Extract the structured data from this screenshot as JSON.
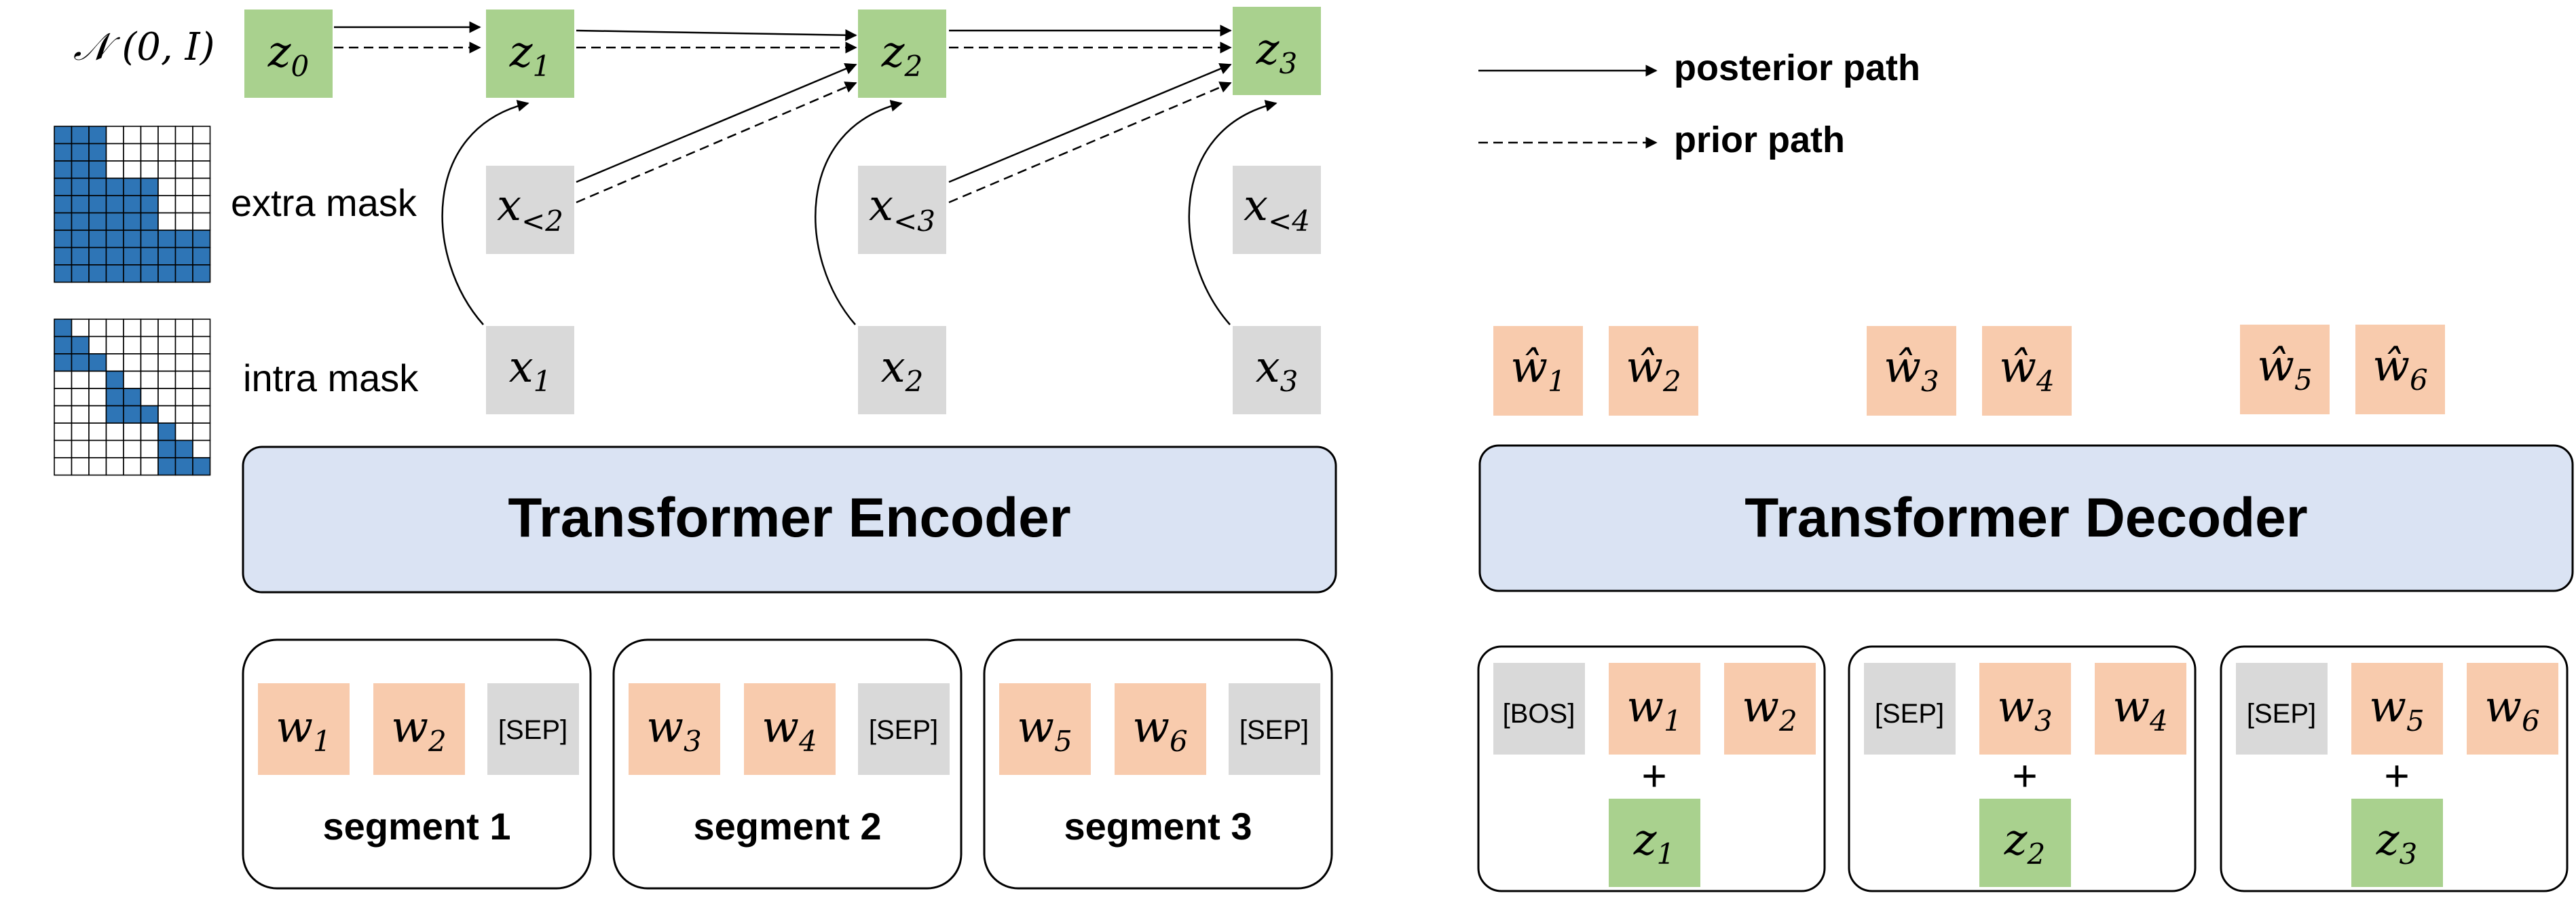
{
  "colors": {
    "latent": "#a9d18e",
    "input": "#d9d9d9",
    "token": "#f8cbad",
    "block": "#dae3f3",
    "mask_fill": "#2e75b6",
    "outline": "#000000"
  },
  "prior": {
    "distribution": "𝒩 (0, I)"
  },
  "latents": [
    {
      "name": "z",
      "sub": "0"
    },
    {
      "name": "z",
      "sub": "1"
    },
    {
      "name": "z",
      "sub": "2"
    },
    {
      "name": "z",
      "sub": "3"
    }
  ],
  "extra_inputs": [
    {
      "name": "x",
      "sub": "<2"
    },
    {
      "name": "x",
      "sub": "<3"
    },
    {
      "name": "x",
      "sub": "<4"
    }
  ],
  "intra_inputs": [
    {
      "name": "x",
      "sub": "1"
    },
    {
      "name": "x",
      "sub": "2"
    },
    {
      "name": "x",
      "sub": "3"
    }
  ],
  "mask_labels": {
    "extra": "extra mask",
    "intra": "intra mask"
  },
  "legend": {
    "posterior": "posterior path",
    "prior": "prior path"
  },
  "encoder": {
    "title": "Transformer Encoder",
    "segments": [
      {
        "label": "segment 1",
        "tokens": [
          {
            "name": "w",
            "sub": "1"
          },
          {
            "name": "w",
            "sub": "2"
          }
        ],
        "sep": "[SEP]"
      },
      {
        "label": "segment 2",
        "tokens": [
          {
            "name": "w",
            "sub": "3"
          },
          {
            "name": "w",
            "sub": "4"
          }
        ],
        "sep": "[SEP]"
      },
      {
        "label": "segment 3",
        "tokens": [
          {
            "name": "w",
            "sub": "5"
          },
          {
            "name": "w",
            "sub": "6"
          }
        ],
        "sep": "[SEP]"
      }
    ]
  },
  "decoder": {
    "title": "Transformer Decoder",
    "outputs": [
      {
        "name": "ŵ",
        "sub": "1"
      },
      {
        "name": "ŵ",
        "sub": "2"
      },
      {
        "name": "ŵ",
        "sub": "3"
      },
      {
        "name": "ŵ",
        "sub": "4"
      },
      {
        "name": "ŵ",
        "sub": "5"
      },
      {
        "name": "ŵ",
        "sub": "6"
      }
    ],
    "groups": [
      {
        "start": "[BOS]",
        "tokens": [
          {
            "name": "w",
            "sub": "1"
          },
          {
            "name": "w",
            "sub": "2"
          }
        ],
        "plus": "+",
        "latent": {
          "name": "z",
          "sub": "1"
        }
      },
      {
        "start": "[SEP]",
        "tokens": [
          {
            "name": "w",
            "sub": "3"
          },
          {
            "name": "w",
            "sub": "4"
          }
        ],
        "plus": "+",
        "latent": {
          "name": "z",
          "sub": "2"
        }
      },
      {
        "start": "[SEP]",
        "tokens": [
          {
            "name": "w",
            "sub": "5"
          },
          {
            "name": "w",
            "sub": "6"
          }
        ],
        "plus": "+",
        "latent": {
          "name": "z",
          "sub": "3"
        }
      }
    ]
  }
}
